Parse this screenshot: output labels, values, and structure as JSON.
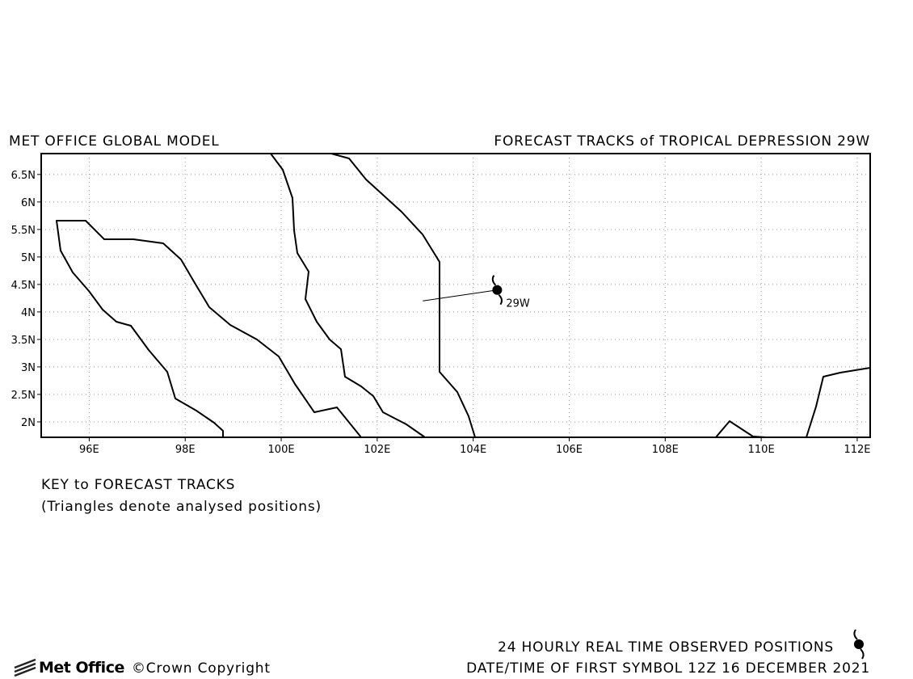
{
  "header": {
    "left_title": "MET OFFICE GLOBAL MODEL",
    "right_title": "FORECAST TRACKS of TROPICAL DEPRESSION 29W"
  },
  "chart_data": {
    "type": "track",
    "xlim": [
      95.0,
      112.27
    ],
    "ylim": [
      1.72,
      6.88
    ],
    "xticks": [
      {
        "value": 96,
        "label": "96E"
      },
      {
        "value": 98,
        "label": "98E"
      },
      {
        "value": 100,
        "label": "100E"
      },
      {
        "value": 102,
        "label": "102E"
      },
      {
        "value": 104,
        "label": "104E"
      },
      {
        "value": 106,
        "label": "106E"
      },
      {
        "value": 108,
        "label": "108E"
      },
      {
        "value": 110,
        "label": "110E"
      },
      {
        "value": 112,
        "label": "112E"
      }
    ],
    "yticks": [
      {
        "value": 2,
        "label": "2N"
      },
      {
        "value": 2.5,
        "label": "2.5N"
      },
      {
        "value": 3,
        "label": "3N"
      },
      {
        "value": 3.5,
        "label": "3.5N"
      },
      {
        "value": 4,
        "label": "4N"
      },
      {
        "value": 4.5,
        "label": "4.5N"
      },
      {
        "value": 5,
        "label": "5N"
      },
      {
        "value": 5.5,
        "label": "5.5N"
      },
      {
        "value": 6,
        "label": "6N"
      },
      {
        "value": 6.5,
        "label": "6.5N"
      }
    ],
    "grid": true,
    "series": [
      {
        "name": "29W",
        "color": "#000000",
        "x": [
          102.95,
          104.5
        ],
        "values": [
          4.2,
          4.4
        ]
      }
    ]
  },
  "key": {
    "title": "KEY to FORECAST TRACKS",
    "note": "(Triangles denote analysed positions)"
  },
  "footer": {
    "logo": "Met Office",
    "copyright": "©Crown Copyright",
    "observed": "24 HOURLY REAL TIME OBSERVED POSITIONS",
    "first_symbol": "DATE/TIME OF FIRST SYMBOL 12Z 16 DECEMBER 2021"
  }
}
